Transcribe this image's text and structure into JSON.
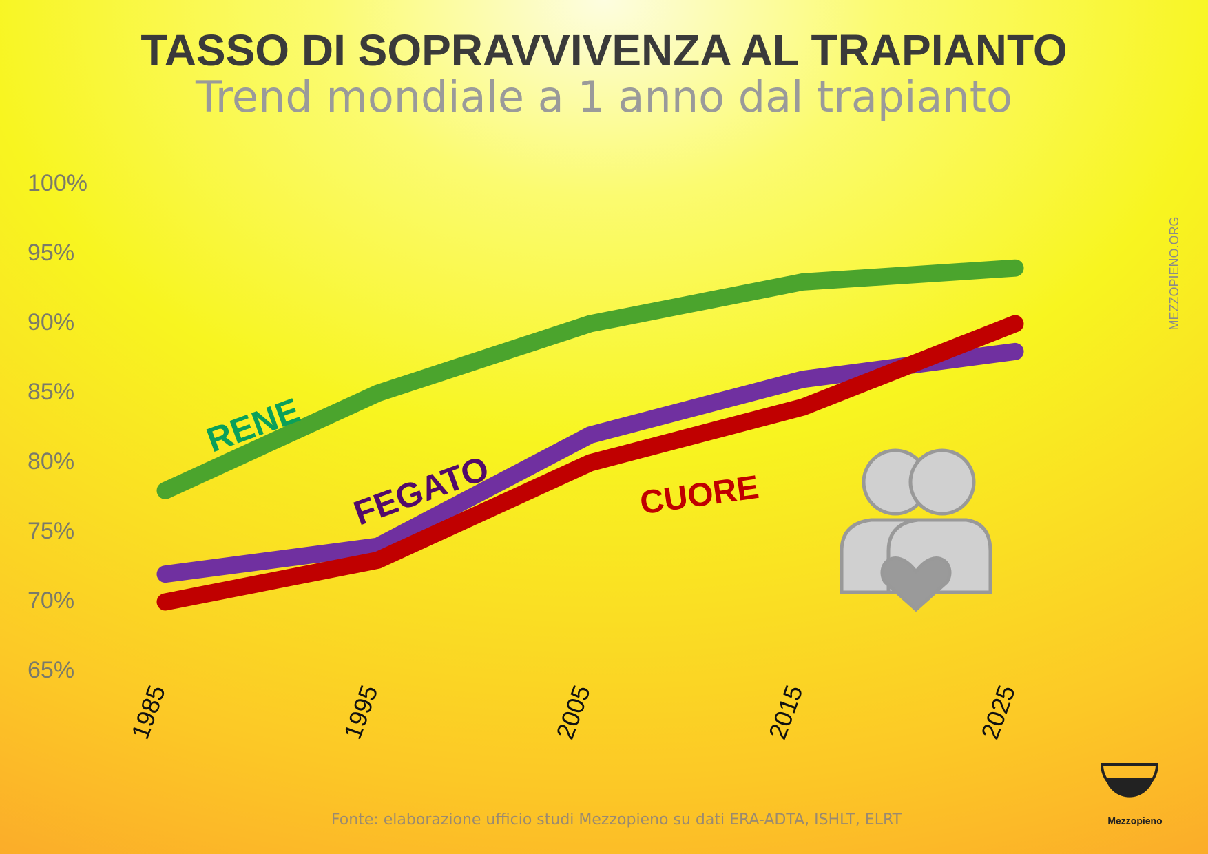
{
  "chart_data": {
    "type": "line",
    "title": "TASSO DI SOPRAVVIVENZA AL TRAPIANTO",
    "subtitle": "Trend mondiale a 1 anno dal trapianto",
    "categories": [
      "1985",
      "1995",
      "2005",
      "2015",
      "2025"
    ],
    "series": [
      {
        "name": "RENE",
        "color": "#4ba42d",
        "label_color": "#0aa05a",
        "values": [
          78,
          85,
          90,
          93,
          94
        ]
      },
      {
        "name": "FEGATO",
        "color": "#7030a0",
        "label_color": "#520a6a",
        "values": [
          72,
          74,
          82,
          86,
          88
        ]
      },
      {
        "name": "CUORE",
        "color": "#c00000",
        "label_color": "#c00000",
        "values": [
          70,
          73,
          80,
          84,
          90
        ]
      }
    ],
    "ylim": [
      65,
      100
    ],
    "yticks": [
      {
        "value": 65,
        "label": "65%"
      },
      {
        "value": 70,
        "label": "70%"
      },
      {
        "value": 75,
        "label": "75%"
      },
      {
        "value": 80,
        "label": "80%"
      },
      {
        "value": 85,
        "label": "85%"
      },
      {
        "value": 90,
        "label": "90%"
      },
      {
        "value": 95,
        "label": "95%"
      },
      {
        "value": 100,
        "label": "100%"
      }
    ],
    "grid": false,
    "watermark": "MEZZOPIENO.ORG",
    "source": "Fonte: elaborazione ufficio studi Mezzopieno su dati  ERA-ADTA, ISHLT, ELRT",
    "logo_text": "Mezzopieno"
  }
}
